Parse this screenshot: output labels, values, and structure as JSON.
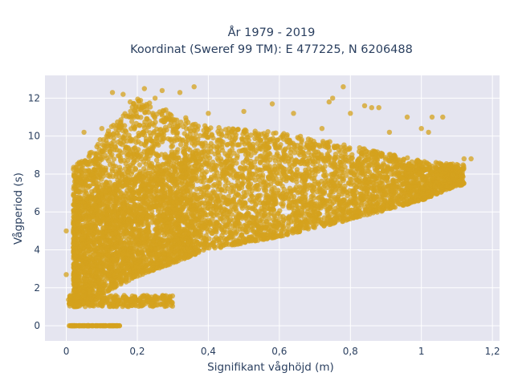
{
  "chart_data": {
    "type": "scatter",
    "title_line1": "År 1979 - 2019",
    "title_line2": "Koordinat (Sweref 99 TM): E 477225, N 6206488",
    "xlabel": "Signifikant våghöjd (m)",
    "ylabel": "Vågperiod (s)",
    "xlim": [
      -0.06,
      1.22
    ],
    "ylim": [
      -0.8,
      13.2
    ],
    "x_ticks": [
      {
        "value": 0,
        "label": "0"
      },
      {
        "value": 0.2,
        "label": "0,2"
      },
      {
        "value": 0.4,
        "label": "0,4"
      },
      {
        "value": 0.6,
        "label": "0,6"
      },
      {
        "value": 0.8,
        "label": "0,8"
      },
      {
        "value": 1.0,
        "label": "1"
      },
      {
        "value": 1.2,
        "label": "1,2"
      }
    ],
    "y_ticks": [
      {
        "value": 0,
        "label": "0"
      },
      {
        "value": 2,
        "label": "2"
      },
      {
        "value": 4,
        "label": "4"
      },
      {
        "value": 6,
        "label": "6"
      },
      {
        "value": 8,
        "label": "8"
      },
      {
        "value": 10,
        "label": "10"
      },
      {
        "value": 12,
        "label": "12"
      }
    ],
    "grid": true,
    "legend": "none",
    "marker_color": "#d4a21e",
    "plot_bg": "#e5e5f0",
    "point_density": "very dense; tens of thousands of hourly observations",
    "point_summary": {
      "main_band": {
        "x_range": [
          0.0,
          1.12
        ],
        "lower_edge_y_at_x": [
          [
            0.03,
            1.0
          ],
          [
            0.2,
            2.6
          ],
          [
            0.4,
            4.0
          ],
          [
            0.6,
            4.7
          ],
          [
            0.8,
            5.6
          ],
          [
            1.0,
            6.6
          ],
          [
            1.1,
            7.4
          ]
        ],
        "upper_edge_y_at_x": [
          [
            0.03,
            8.5
          ],
          [
            0.2,
            12.0
          ],
          [
            0.4,
            10.5
          ],
          [
            0.6,
            10.2
          ],
          [
            0.8,
            9.5
          ],
          [
            1.0,
            8.7
          ],
          [
            1.1,
            8.5
          ]
        ]
      },
      "zero_period_points": {
        "y": 0,
        "x_range": [
          0.0,
          0.15
        ]
      },
      "low_period_strip": {
        "y_range": [
          1.0,
          1.6
        ],
        "x_range": [
          0.0,
          0.3
        ]
      },
      "sample_points": [
        [
          0.0,
          2.7
        ],
        [
          0.0,
          5.0
        ],
        [
          0.02,
          1.5
        ],
        [
          0.05,
          10.2
        ],
        [
          0.1,
          10.4
        ],
        [
          0.13,
          12.3
        ],
        [
          0.16,
          12.2
        ],
        [
          0.18,
          11.8
        ],
        [
          0.22,
          12.5
        ],
        [
          0.25,
          12.0
        ],
        [
          0.27,
          12.4
        ],
        [
          0.32,
          12.3
        ],
        [
          0.36,
          12.6
        ],
        [
          0.4,
          11.2
        ],
        [
          0.5,
          11.3
        ],
        [
          0.58,
          11.7
        ],
        [
          0.64,
          11.2
        ],
        [
          0.66,
          9.2
        ],
        [
          0.72,
          10.4
        ],
        [
          0.74,
          11.8
        ],
        [
          0.75,
          12.0
        ],
        [
          0.78,
          12.6
        ],
        [
          0.8,
          11.2
        ],
        [
          0.84,
          11.6
        ],
        [
          0.86,
          11.5
        ],
        [
          0.88,
          11.5
        ],
        [
          0.91,
          10.2
        ],
        [
          0.96,
          11.0
        ],
        [
          1.0,
          10.4
        ],
        [
          1.02,
          10.2
        ],
        [
          1.03,
          11.0
        ],
        [
          1.06,
          11.0
        ],
        [
          1.1,
          8.5
        ],
        [
          1.12,
          8.8
        ],
        [
          1.14,
          8.8
        ],
        [
          1.05,
          8.2
        ],
        [
          1.08,
          7.6
        ]
      ]
    }
  }
}
